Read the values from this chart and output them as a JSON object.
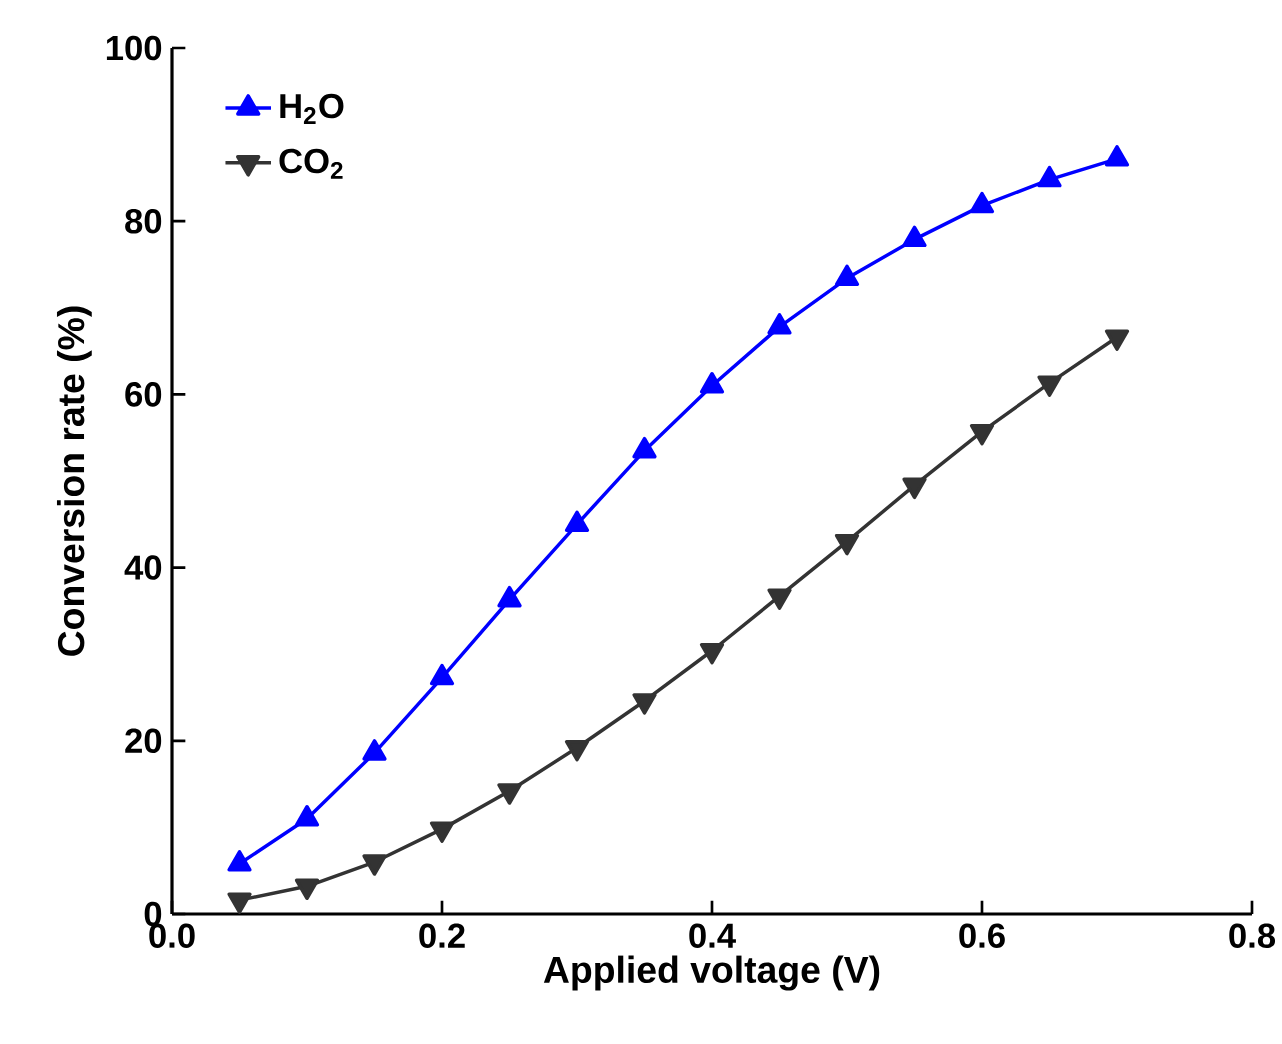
{
  "chart_data": {
    "type": "line",
    "xlabel": "Applied voltage (V)",
    "ylabel": "Conversion rate (%)",
    "x": [
      0.05,
      0.1,
      0.15,
      0.2,
      0.25,
      0.3,
      0.35,
      0.4,
      0.45,
      0.5,
      0.55,
      0.6,
      0.65,
      0.7
    ],
    "series": [
      {
        "name": "H$_{2}$O",
        "color": "#0000ff",
        "marker": "triangle",
        "values": [
          5.8,
          11,
          18.6,
          27.3,
          36.3,
          45,
          53.5,
          61,
          67.8,
          73.4,
          77.9,
          81.8,
          84.8,
          87.2
        ]
      },
      {
        "name": "CO$_{2}$",
        "color": "#333333",
        "marker": "triangle down",
        "values": [
          1.6,
          3.2,
          6,
          9.8,
          14.2,
          19.2,
          24.6,
          30.4,
          36.7,
          43,
          49.5,
          55.7,
          61.3,
          66.6
        ]
      }
    ],
    "xlim": [
      0,
      0.8
    ],
    "ylim": [
      0,
      100
    ],
    "xticks": [
      {
        "value": 0,
        "label": "0.0"
      },
      0.2,
      0.4,
      0.6,
      0.8
    ],
    "yticks": [
      0,
      20,
      40,
      60,
      80,
      100
    ],
    "grid": false,
    "legend": "top left",
    "line_style": "solid"
  }
}
